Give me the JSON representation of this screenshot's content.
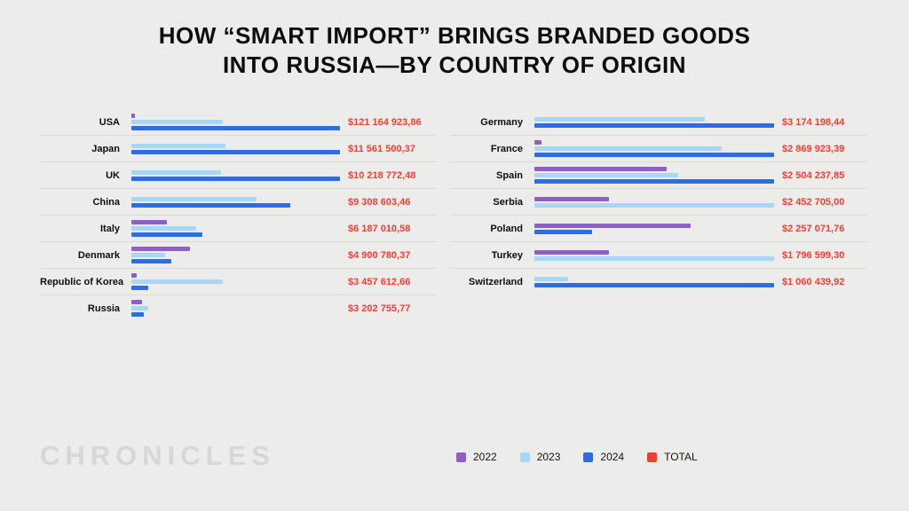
{
  "title": {
    "line1": "HOW “SMART IMPORT” BRINGS BRANDED GOODS",
    "line2": "INTO RUSSIA—BY COUNTRY OF ORIGIN"
  },
  "watermark": "CHRONICLES",
  "colors": {
    "2022": "#8e5fc7",
    "2023": "#a6d8f5",
    "2024": "#2c6ce5",
    "total": "#f43b31",
    "background": "#ecedea",
    "divider": "#d9dad6"
  },
  "legend": [
    {
      "label": "2022",
      "color": "#8e5fc7"
    },
    {
      "label": "2023",
      "color": "#a6d8f5"
    },
    {
      "label": "2024",
      "color": "#2c6ce5"
    },
    {
      "label": "TOTAL",
      "color": "#f43b31"
    }
  ],
  "chart_data": [
    {
      "type": "bar",
      "orientation": "horizontal",
      "legend_position": "bottom",
      "grid": "row-dividers",
      "note": "bar lengths are percent of track width, estimated from pixels; totals are the red printed values",
      "rows": [
        {
          "country": "USA",
          "total": "$121 164 923,86",
          "bars": [
            {
              "year": "2022",
              "pct": 1.5
            },
            {
              "year": "2023",
              "pct": 44
            },
            {
              "year": "2024",
              "pct": 100
            }
          ]
        },
        {
          "country": "Japan",
          "total": "$11 561 500,37",
          "bars": [
            {
              "year": "2023",
              "pct": 45
            },
            {
              "year": "2024",
              "pct": 100
            }
          ]
        },
        {
          "country": "UK",
          "total": "$10 218 772,48",
          "bars": [
            {
              "year": "2023",
              "pct": 43
            },
            {
              "year": "2024",
              "pct": 100
            }
          ]
        },
        {
          "country": "China",
          "total": "$9 308 603,46",
          "bars": [
            {
              "year": "2023",
              "pct": 60
            },
            {
              "year": "2024",
              "pct": 76
            }
          ]
        },
        {
          "country": "Italy",
          "total": "$6 187 010,58",
          "bars": [
            {
              "year": "2022",
              "pct": 17
            },
            {
              "year": "2023",
              "pct": 31
            },
            {
              "year": "2024",
              "pct": 34
            }
          ]
        },
        {
          "country": "Denmark",
          "total": "$4 900 780,37",
          "bars": [
            {
              "year": "2022",
              "pct": 28
            },
            {
              "year": "2023",
              "pct": 16
            },
            {
              "year": "2024",
              "pct": 19
            }
          ]
        },
        {
          "country": "Republic of Korea",
          "total": "$3 457 612,66",
          "bars": [
            {
              "year": "2022",
              "pct": 2.5
            },
            {
              "year": "2023",
              "pct": 44
            },
            {
              "year": "2024",
              "pct": 8
            }
          ]
        },
        {
          "country": "Russia",
          "total": "$3 202 755,77",
          "bars": [
            {
              "year": "2022",
              "pct": 5
            },
            {
              "year": "2023",
              "pct": 8
            },
            {
              "year": "2024",
              "pct": 6
            }
          ]
        }
      ]
    },
    {
      "type": "bar",
      "orientation": "horizontal",
      "legend_position": "bottom",
      "grid": "row-dividers",
      "note": "bar lengths are percent of track width, estimated from pixels; totals are the red printed values",
      "rows": [
        {
          "country": "Germany",
          "total": "$3 174 198,44",
          "bars": [
            {
              "year": "2023",
              "pct": 71
            },
            {
              "year": "2024",
              "pct": 100
            }
          ]
        },
        {
          "country": "France",
          "total": "$2 869 923,39",
          "bars": [
            {
              "year": "2022",
              "pct": 3
            },
            {
              "year": "2023",
              "pct": 78
            },
            {
              "year": "2024",
              "pct": 100
            }
          ]
        },
        {
          "country": "Spain",
          "total": "$2 504 237,85",
          "bars": [
            {
              "year": "2022",
              "pct": 55
            },
            {
              "year": "2023",
              "pct": 60
            },
            {
              "year": "2024",
              "pct": 100
            }
          ]
        },
        {
          "country": "Serbia",
          "total": "$2 452 705,00",
          "bars": [
            {
              "year": "2022",
              "pct": 31
            },
            {
              "year": "2023",
              "pct": 100
            }
          ]
        },
        {
          "country": "Poland",
          "total": "$2 257 071,76",
          "bars": [
            {
              "year": "2022",
              "pct": 65
            },
            {
              "year": "2024",
              "pct": 24
            }
          ]
        },
        {
          "country": "Turkey",
          "total": "$1 796 599,30",
          "bars": [
            {
              "year": "2022",
              "pct": 31
            },
            {
              "year": "2023",
              "pct": 100
            }
          ]
        },
        {
          "country": "Switzerland",
          "total": "$1 060 439,92",
          "bars": [
            {
              "year": "2023",
              "pct": 14
            },
            {
              "year": "2024",
              "pct": 100
            }
          ]
        }
      ]
    }
  ]
}
